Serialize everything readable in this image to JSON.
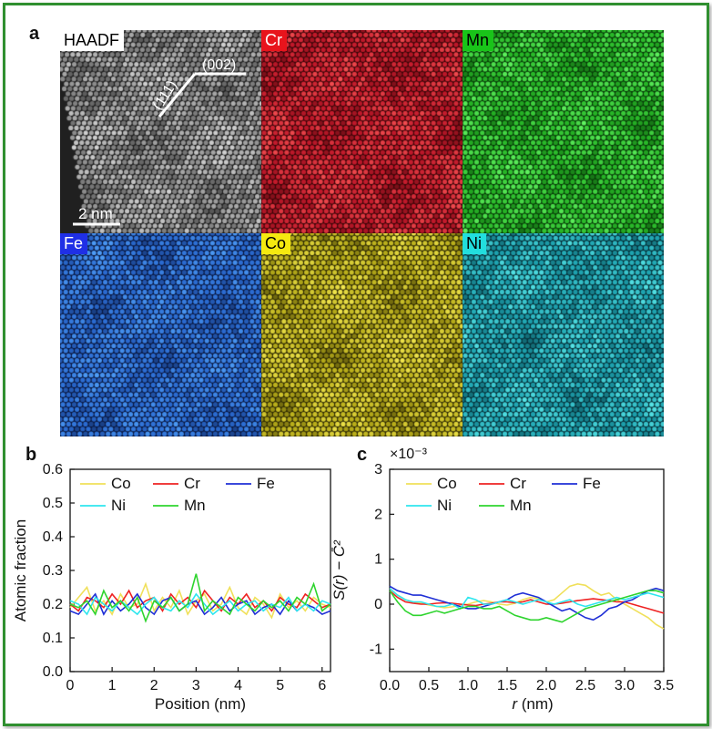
{
  "panels": {
    "a": {
      "letter": "a",
      "tiles": [
        {
          "label": "HAADF",
          "label_bg": "#ffffff",
          "label_fg": "#000000",
          "base": "#8a8a8a",
          "dark": "#202020",
          "light": "#e6e6e6"
        },
        {
          "label": "Cr",
          "label_bg": "#e8141c",
          "label_fg": "#ffffff",
          "base": "#c0182a",
          "dark": "#3a0608",
          "light": "#ff5a5a"
        },
        {
          "label": "Mn",
          "label_bg": "#19c419",
          "label_fg": "#000000",
          "base": "#26b526",
          "dark": "#083a08",
          "light": "#6cff6c"
        },
        {
          "label": "Fe",
          "label_bg": "#1f2fe6",
          "label_fg": "#ffffff",
          "base": "#2a6ad0",
          "dark": "#0a1840",
          "light": "#56a8ff"
        },
        {
          "label": "Co",
          "label_bg": "#f5ea10",
          "label_fg": "#000000",
          "base": "#b8ad1a",
          "dark": "#2e2a04",
          "light": "#fff45a"
        },
        {
          "label": "Ni",
          "label_bg": "#22dede",
          "label_fg": "#000000",
          "base": "#1ea3b0",
          "dark": "#063038",
          "light": "#62f2f2"
        }
      ],
      "annotation_111": "(111)",
      "annotation_002": "(002)",
      "scalebar_label": "2 nm"
    },
    "b": {
      "letter": "b"
    },
    "c": {
      "letter": "c"
    }
  },
  "colors": {
    "Co": "#f0e05a",
    "Cr": "#ee2222",
    "Fe": "#1f2fd6",
    "Ni": "#2ee6ee",
    "Mn": "#2ed42e",
    "frame": "#2f8f2f"
  },
  "chart_data": [
    {
      "type": "line",
      "xlabel": "Position (nm)",
      "ylabel": "Atomic fraction",
      "xlim": [
        0,
        6.2
      ],
      "ylim": [
        0,
        0.6
      ],
      "xticks": [
        0,
        1,
        2,
        3,
        4,
        5,
        6
      ],
      "yticks": [
        0.0,
        0.1,
        0.2,
        0.3,
        0.4,
        0.5,
        0.6
      ],
      "ytick_labels": [
        "0.0",
        "0.1",
        "0.2",
        "0.3",
        "0.4",
        "0.5",
        "0.6"
      ],
      "legend": [
        "Co",
        "Cr",
        "Fe",
        "Ni",
        "Mn"
      ],
      "x": [
        0.0,
        0.2,
        0.4,
        0.6,
        0.8,
        1.0,
        1.2,
        1.4,
        1.6,
        1.8,
        2.0,
        2.2,
        2.4,
        2.6,
        2.8,
        3.0,
        3.2,
        3.4,
        3.6,
        3.8,
        4.0,
        4.2,
        4.4,
        4.6,
        4.8,
        5.0,
        5.2,
        5.4,
        5.6,
        5.8,
        6.0,
        6.2
      ],
      "series": [
        {
          "name": "Co",
          "values": [
            0.19,
            0.22,
            0.25,
            0.18,
            0.21,
            0.17,
            0.23,
            0.19,
            0.2,
            0.26,
            0.18,
            0.22,
            0.19,
            0.24,
            0.17,
            0.21,
            0.23,
            0.18,
            0.2,
            0.25,
            0.19,
            0.17,
            0.22,
            0.2,
            0.16,
            0.23,
            0.19,
            0.21,
            0.18,
            0.22,
            0.2,
            0.19
          ]
        },
        {
          "name": "Cr",
          "values": [
            0.2,
            0.18,
            0.22,
            0.21,
            0.19,
            0.23,
            0.2,
            0.24,
            0.19,
            0.21,
            0.22,
            0.18,
            0.23,
            0.2,
            0.22,
            0.19,
            0.24,
            0.21,
            0.18,
            0.22,
            0.2,
            0.23,
            0.19,
            0.21,
            0.18,
            0.22,
            0.2,
            0.19,
            0.23,
            0.21,
            0.19,
            0.2
          ]
        },
        {
          "name": "Fe",
          "values": [
            0.18,
            0.17,
            0.2,
            0.23,
            0.17,
            0.21,
            0.18,
            0.2,
            0.23,
            0.19,
            0.17,
            0.21,
            0.22,
            0.18,
            0.2,
            0.21,
            0.17,
            0.19,
            0.22,
            0.18,
            0.2,
            0.21,
            0.17,
            0.19,
            0.2,
            0.17,
            0.21,
            0.18,
            0.2,
            0.19,
            0.17,
            0.18
          ]
        },
        {
          "name": "Ni",
          "values": [
            0.21,
            0.2,
            0.17,
            0.22,
            0.2,
            0.18,
            0.21,
            0.19,
            0.17,
            0.2,
            0.22,
            0.19,
            0.18,
            0.21,
            0.19,
            0.23,
            0.2,
            0.17,
            0.19,
            0.21,
            0.18,
            0.2,
            0.21,
            0.18,
            0.2,
            0.19,
            0.22,
            0.18,
            0.2,
            0.18,
            0.21,
            0.2
          ]
        },
        {
          "name": "Mn",
          "values": [
            0.2,
            0.19,
            0.21,
            0.17,
            0.24,
            0.19,
            0.21,
            0.18,
            0.22,
            0.15,
            0.21,
            0.19,
            0.22,
            0.18,
            0.2,
            0.29,
            0.18,
            0.21,
            0.19,
            0.17,
            0.22,
            0.2,
            0.18,
            0.21,
            0.19,
            0.21,
            0.18,
            0.22,
            0.2,
            0.26,
            0.18,
            0.2
          ]
        }
      ]
    },
    {
      "type": "line",
      "xlabel_italic": "r",
      "xlabel_rest": " (nm)",
      "ylabel": "S(r) − C̄²",
      "multiplier": "×10⁻³",
      "xlim": [
        0,
        3.5
      ],
      "ylim": [
        -1.5,
        3
      ],
      "xticks": [
        0.0,
        0.5,
        1.0,
        1.5,
        2.0,
        2.5,
        3.0,
        3.5
      ],
      "xtick_labels": [
        "0.0",
        "0.5",
        "1.0",
        "1.5",
        "2.0",
        "2.5",
        "3.0",
        "3.5"
      ],
      "yticks": [
        -1,
        0,
        1,
        2,
        3
      ],
      "legend": [
        "Co",
        "Cr",
        "Fe",
        "Ni",
        "Mn"
      ],
      "x": [
        0.0,
        0.1,
        0.2,
        0.3,
        0.4,
        0.5,
        0.6,
        0.7,
        0.8,
        0.9,
        1.0,
        1.1,
        1.2,
        1.3,
        1.4,
        1.5,
        1.6,
        1.7,
        1.8,
        1.9,
        2.0,
        2.1,
        2.2,
        2.3,
        2.4,
        2.5,
        2.6,
        2.7,
        2.8,
        2.9,
        3.0,
        3.1,
        3.2,
        3.3,
        3.4,
        3.5
      ],
      "series": [
        {
          "name": "Co",
          "values": [
            0.35,
            0.2,
            0.1,
            0.05,
            0.02,
            -0.02,
            -0.05,
            -0.08,
            -0.06,
            -0.02,
            0.0,
            0.05,
            0.08,
            0.05,
            0.0,
            -0.02,
            0.02,
            0.1,
            0.15,
            0.12,
            0.05,
            0.1,
            0.25,
            0.4,
            0.45,
            0.42,
            0.3,
            0.2,
            0.25,
            0.1,
            0.0,
            -0.1,
            -0.2,
            -0.3,
            -0.45,
            -0.55
          ]
        },
        {
          "name": "Cr",
          "values": [
            0.3,
            0.15,
            0.05,
            0.02,
            0.0,
            0.0,
            0.02,
            0.03,
            0.02,
            0.0,
            -0.02,
            -0.03,
            0.0,
            0.02,
            0.05,
            0.05,
            0.03,
            0.05,
            0.1,
            0.05,
            0.0,
            0.0,
            0.02,
            0.05,
            0.08,
            0.1,
            0.12,
            0.1,
            0.08,
            0.05,
            0.05,
            0.0,
            -0.05,
            -0.1,
            -0.15,
            -0.2
          ]
        },
        {
          "name": "Fe",
          "values": [
            0.4,
            0.3,
            0.25,
            0.2,
            0.2,
            0.15,
            0.1,
            0.05,
            0.0,
            -0.05,
            -0.1,
            -0.1,
            -0.05,
            0.0,
            0.05,
            0.1,
            0.2,
            0.25,
            0.2,
            0.15,
            0.05,
            -0.05,
            -0.15,
            -0.1,
            -0.2,
            -0.3,
            -0.35,
            -0.25,
            -0.1,
            -0.05,
            0.05,
            0.1,
            0.2,
            0.3,
            0.35,
            0.3
          ]
        },
        {
          "name": "Ni",
          "values": [
            0.35,
            0.2,
            0.1,
            0.05,
            0.05,
            0.0,
            -0.05,
            -0.05,
            0.0,
            -0.1,
            0.15,
            0.1,
            0.0,
            0.0,
            0.05,
            0.1,
            0.05,
            0.0,
            0.05,
            0.1,
            0.05,
            0.0,
            0.05,
            0.1,
            0.0,
            -0.05,
            0.0,
            0.05,
            0.1,
            0.15,
            0.1,
            0.15,
            0.2,
            0.25,
            0.2,
            0.15
          ]
        },
        {
          "name": "Mn",
          "values": [
            0.3,
            0.05,
            -0.15,
            -0.25,
            -0.25,
            -0.2,
            -0.15,
            -0.2,
            -0.15,
            -0.1,
            -0.05,
            -0.05,
            -0.1,
            -0.1,
            -0.05,
            -0.15,
            -0.25,
            -0.3,
            -0.35,
            -0.35,
            -0.3,
            -0.35,
            -0.4,
            -0.3,
            -0.2,
            -0.1,
            -0.05,
            0.0,
            0.05,
            0.1,
            0.15,
            0.2,
            0.25,
            0.3,
            0.3,
            0.25
          ]
        }
      ]
    }
  ]
}
